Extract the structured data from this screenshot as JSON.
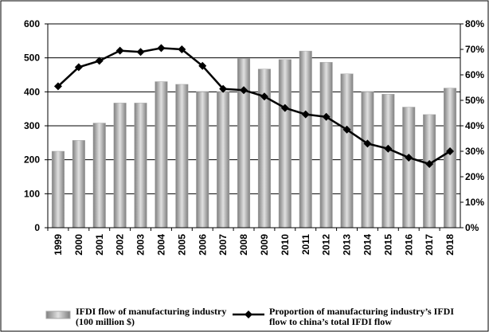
{
  "chart_data": {
    "type": "bar-line",
    "categories": [
      "1999",
      "2000",
      "2001",
      "2002",
      "2003",
      "2004",
      "2005",
      "2006",
      "2007",
      "2008",
      "2009",
      "2010",
      "2011",
      "2012",
      "2013",
      "2014",
      "2015",
      "2016",
      "2017",
      "2018"
    ],
    "series": [
      {
        "name": "IFDI flow of manufacturing industry (100 million $)",
        "color": "#a6a6a6",
        "type": "bar",
        "values": [
          225,
          257,
          308,
          367,
          367,
          430,
          422,
          400,
          400,
          498,
          467,
          495,
          520,
          487,
          453,
          400,
          393,
          355,
          333,
          411
        ]
      },
      {
        "name": "Proportion of manufacturing industry’s IFDI flow to china’s total IFDI flow",
        "color": "#000000",
        "type": "line",
        "axis": "y2",
        "values": [
          55.5,
          63,
          65.5,
          69.5,
          69,
          70.5,
          70,
          63.5,
          54.5,
          54,
          51.5,
          47,
          44.5,
          43.5,
          38.5,
          33,
          31,
          27.5,
          25,
          30
        ]
      }
    ],
    "ylim": [
      0,
      600
    ],
    "yticks": [
      0,
      100,
      200,
      300,
      400,
      500,
      600
    ],
    "y2lim": [
      0,
      80
    ],
    "y2ticks": [
      {
        "value": 0,
        "label": "0%"
      },
      {
        "value": 10,
        "label": "10%"
      },
      {
        "value": 20,
        "label": "20%"
      },
      {
        "value": 30,
        "label": "30%"
      },
      {
        "value": 40,
        "label": "40%"
      },
      {
        "value": 50,
        "label": "50%"
      },
      {
        "value": 60,
        "label": "60%"
      },
      {
        "value": 70,
        "label": "70%"
      },
      {
        "value": 80,
        "label": "80%"
      }
    ],
    "grid": true
  }
}
